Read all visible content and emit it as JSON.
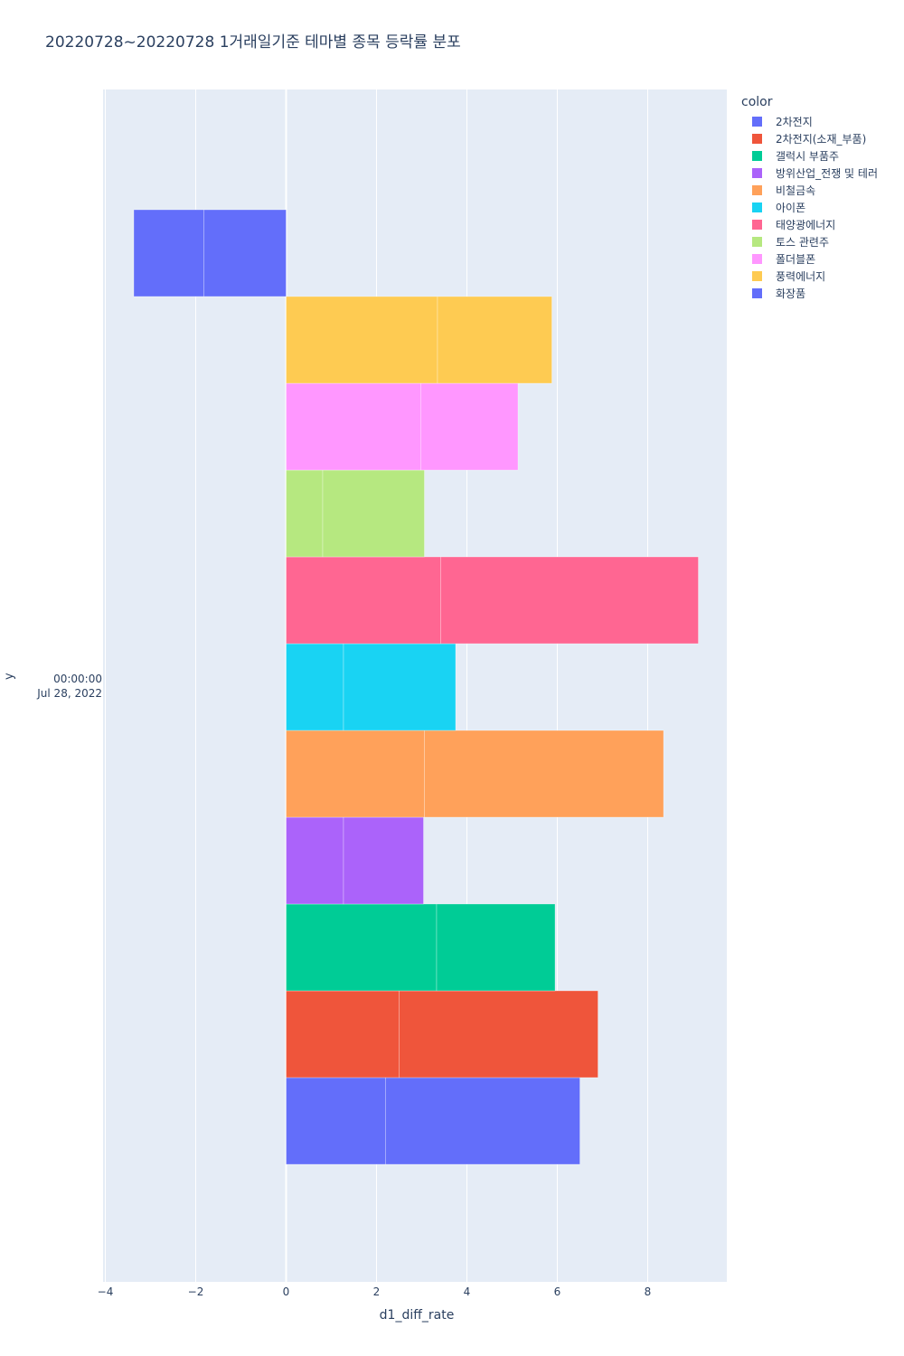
{
  "chart_data": {
    "type": "bar",
    "orientation": "horizontal",
    "barmode": "stack",
    "title": "20220728~20220728 1거래일기준 테마별 종목 등락률 분포",
    "xlabel": "d1_diff_rate",
    "ylabel": "y",
    "y_tick_label": [
      "00:00:00",
      "Jul 28, 2022"
    ],
    "x_ticks": [
      -4,
      -2,
      0,
      2,
      4,
      6,
      8
    ],
    "xlim": [
      -4.05,
      9.75
    ],
    "grid": true,
    "legend": {
      "title": "color",
      "placement": "right"
    },
    "series": [
      {
        "name": "2차전지",
        "color": "#636efa",
        "segments": [
          2.2,
          4.3
        ]
      },
      {
        "name": "2차전지(소재_부품)",
        "color": "#EF553B",
        "segments": [
          2.5,
          4.4
        ]
      },
      {
        "name": "갤럭시 부품주",
        "color": "#00cc96",
        "segments": [
          3.33,
          2.62
        ]
      },
      {
        "name": "방위산업_전쟁 및 테러",
        "color": "#ab63fa",
        "segments": [
          1.27,
          1.77
        ]
      },
      {
        "name": "비철금속",
        "color": "#FFA15A",
        "segments": [
          3.06,
          5.29
        ]
      },
      {
        "name": "아이폰",
        "color": "#19d3f3",
        "segments": [
          1.27,
          2.48
        ]
      },
      {
        "name": "태양광에너지",
        "color": "#FF6692",
        "segments": [
          3.42,
          5.7
        ]
      },
      {
        "name": "토스 관련주",
        "color": "#B6E880",
        "segments": [
          0.81,
          2.25
        ]
      },
      {
        "name": "폴더블폰",
        "color": "#FF97FF",
        "segments": [
          2.98,
          2.15
        ]
      },
      {
        "name": "풍력에너지",
        "color": "#FECB52",
        "segments": [
          3.35,
          2.53
        ]
      },
      {
        "name": "화장품",
        "color": "#636efa",
        "segments": [
          -1.82,
          -1.55
        ]
      }
    ]
  }
}
